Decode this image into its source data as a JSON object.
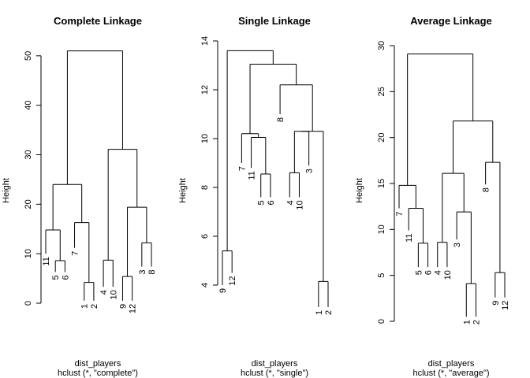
{
  "chart_data": [
    {
      "type": "dendrogram",
      "title": "Complete Linkage",
      "ylabel": "Height",
      "xlabel": "dist_players",
      "sub": "hclust (*, \"complete\")",
      "ylim": [
        0,
        53
      ],
      "yticks": [
        0,
        10,
        20,
        30,
        40,
        50
      ],
      "leaves": [
        "11",
        "5",
        "6",
        "7",
        "1",
        "2",
        "4",
        "10",
        "9",
        "12",
        "3",
        "8"
      ],
      "leaf_heights": [
        10.0,
        6.3,
        6.3,
        11.2,
        0.5,
        0.5,
        3.3,
        3.3,
        0.5,
        0.5,
        7.4,
        7.4
      ],
      "merges": [
        {
          "a": [
            {
              "leaf": 1
            },
            {
              "leaf": 2
            }
          ],
          "height": 8.6
        },
        {
          "a": [
            {
              "leaf": 0
            },
            {
              "node": 0
            }
          ],
          "height": 14.8
        },
        {
          "a": [
            {
              "leaf": 4
            },
            {
              "leaf": 5
            }
          ],
          "height": 4.2
        },
        {
          "a": [
            {
              "leaf": 3
            },
            {
              "node": 2
            }
          ],
          "height": 16.3
        },
        {
          "a": [
            {
              "node": 1
            },
            {
              "node": 3
            }
          ],
          "height": 24.0
        },
        {
          "a": [
            {
              "leaf": 6
            },
            {
              "leaf": 7
            }
          ],
          "height": 8.7
        },
        {
          "a": [
            {
              "leaf": 8
            },
            {
              "leaf": 9
            }
          ],
          "height": 5.4
        },
        {
          "a": [
            {
              "leaf": 10
            },
            {
              "leaf": 11
            }
          ],
          "height": 12.2
        },
        {
          "a": [
            {
              "node": 6
            },
            {
              "node": 7
            }
          ],
          "height": 19.4
        },
        {
          "a": [
            {
              "node": 5
            },
            {
              "node": 8
            }
          ],
          "height": 31.1
        },
        {
          "a": [
            {
              "node": 4
            },
            {
              "node": 9
            }
          ],
          "height": 51.0
        }
      ]
    },
    {
      "type": "dendrogram",
      "title": "Single Linkage",
      "ylabel": "Height",
      "xlabel": "dist_players",
      "sub": "hclust (*, \"single\")",
      "ylim": [
        4,
        14
      ],
      "yticks": [
        4,
        6,
        8,
        10,
        12,
        14
      ],
      "leaves": [
        "9",
        "12",
        "7",
        "11",
        "5",
        "6",
        "8",
        "4",
        "10",
        "3",
        "1",
        "2"
      ],
      "leaf_heights": [
        4.0,
        4.5,
        9.0,
        8.8,
        7.6,
        7.6,
        11.0,
        7.6,
        7.6,
        8.9,
        3.1,
        3.1
      ],
      "merges": [
        {
          "a": [
            {
              "leaf": 0
            },
            {
              "leaf": 1
            }
          ],
          "height": 5.4
        },
        {
          "a": [
            {
              "leaf": 4
            },
            {
              "leaf": 5
            }
          ],
          "height": 8.55
        },
        {
          "a": [
            {
              "leaf": 3
            },
            {
              "node": 1
            }
          ],
          "height": 10.05
        },
        {
          "a": [
            {
              "leaf": 2
            },
            {
              "node": 2
            }
          ],
          "height": 10.2
        },
        {
          "a": [
            {
              "leaf": 7
            },
            {
              "leaf": 8
            }
          ],
          "height": 8.6
        },
        {
          "a": [
            {
              "node": 4
            },
            {
              "leaf": 9
            }
          ],
          "height": 10.3
        },
        {
          "a": [
            {
              "leaf": 10
            },
            {
              "leaf": 11
            }
          ],
          "height": 4.15
        },
        {
          "a": [
            {
              "node": 5
            },
            {
              "node": 6
            }
          ],
          "height": 10.3
        },
        {
          "a": [
            {
              "leaf": 6
            },
            {
              "node": 7
            }
          ],
          "height": 12.2
        },
        {
          "a": [
            {
              "node": 3
            },
            {
              "node": 8
            }
          ],
          "height": 13.05
        },
        {
          "a": [
            {
              "node": 0
            },
            {
              "node": 9
            }
          ],
          "height": 13.6
        }
      ]
    },
    {
      "type": "dendrogram",
      "title": "Average Linkage",
      "ylabel": "Height",
      "xlabel": "dist_players",
      "sub": "hclust (*, \"average\")",
      "ylim": [
        0,
        30
      ],
      "yticks": [
        0,
        5,
        10,
        15,
        20,
        25,
        30
      ],
      "leaves": [
        "7",
        "11",
        "5",
        "6",
        "4",
        "10",
        "3",
        "1",
        "2",
        "8",
        "9",
        "12"
      ],
      "leaf_heights": [
        12.3,
        9.9,
        5.9,
        5.9,
        5.9,
        5.9,
        8.9,
        0.5,
        0.5,
        14.9,
        2.6,
        2.6
      ],
      "merges": [
        {
          "a": [
            {
              "leaf": 2
            },
            {
              "leaf": 3
            }
          ],
          "height": 8.5
        },
        {
          "a": [
            {
              "leaf": 1
            },
            {
              "node": 0
            }
          ],
          "height": 12.3
        },
        {
          "a": [
            {
              "leaf": 0
            },
            {
              "node": 1
            }
          ],
          "height": 14.8
        },
        {
          "a": [
            {
              "leaf": 7
            },
            {
              "leaf": 8
            }
          ],
          "height": 4.1
        },
        {
          "a": [
            {
              "leaf": 6
            },
            {
              "node": 3
            }
          ],
          "height": 11.9
        },
        {
          "a": [
            {
              "leaf": 4
            },
            {
              "leaf": 5
            }
          ],
          "height": 8.6
        },
        {
          "a": [
            {
              "node": 5
            },
            {
              "node": 4
            }
          ],
          "height": 16.1
        },
        {
          "a": [
            {
              "leaf": 10
            },
            {
              "leaf": 11
            }
          ],
          "height": 5.3
        },
        {
          "a": [
            {
              "leaf": 9
            },
            {
              "node": 7
            }
          ],
          "height": 17.3
        },
        {
          "a": [
            {
              "node": 6
            },
            {
              "node": 8
            }
          ],
          "height": 21.8
        },
        {
          "a": [
            {
              "node": 2
            },
            {
              "node": 9
            }
          ],
          "height": 29.1
        }
      ]
    }
  ]
}
